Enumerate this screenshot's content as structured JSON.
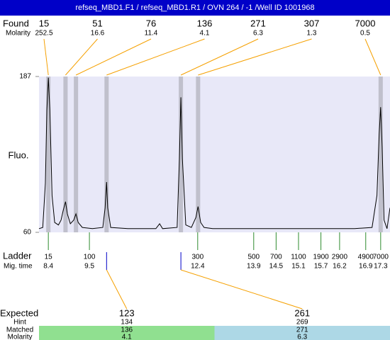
{
  "header": {
    "title": "refseq_MBD1.F1 / refseq_MBD1.R1 / OVN 264 / -1 /Well ID 1001968"
  },
  "chart_data": {
    "type": "electropherogram",
    "y_label": "Fluo.",
    "ylim": [
      60,
      187
    ],
    "yticks": [
      60,
      187
    ],
    "xlim": [
      8.15,
      17.55
    ],
    "trace": {
      "color": "#000000",
      "x": [
        8.15,
        8.25,
        8.32,
        8.36,
        8.4,
        8.44,
        8.5,
        8.57,
        8.67,
        8.74,
        8.8,
        8.86,
        8.91,
        8.99,
        9.08,
        9.14,
        9.2,
        9.31,
        9.58,
        9.86,
        9.92,
        9.96,
        9.99,
        10.07,
        10.53,
        11.28,
        11.38,
        11.46,
        11.85,
        11.91,
        11.95,
        11.99,
        12.08,
        12.23,
        12.35,
        12.41,
        12.48,
        12.57,
        12.8,
        14.7,
        16.6,
        17.07,
        17.2,
        17.26,
        17.3,
        17.34,
        17.39,
        17.47,
        17.55
      ],
      "values": [
        63,
        64,
        100,
        160,
        186,
        160,
        90,
        68,
        66,
        70,
        78,
        85,
        75,
        67,
        70,
        75,
        68,
        64,
        63,
        64,
        80,
        101,
        80,
        64,
        63,
        63,
        67,
        63,
        64,
        120,
        170,
        120,
        66,
        64,
        72,
        81,
        68,
        64,
        63,
        63,
        63,
        64,
        90,
        140,
        162,
        130,
        70,
        63,
        80
      ]
    },
    "found": {
      "label": "Found",
      "molarity_label": "Molarity",
      "sizes": [
        15,
        51,
        76,
        136,
        271,
        307,
        7000
      ],
      "molarity": [
        252.5,
        16.6,
        11.4,
        4.1,
        6.3,
        1.3,
        0.5
      ],
      "peak_times": [
        8.4,
        8.86,
        9.14,
        9.96,
        11.95,
        12.41,
        17.3
      ]
    },
    "ladder": {
      "label": "Ladder",
      "time_label": "Mig. time",
      "sizes": [
        15,
        100,
        300,
        500,
        700,
        1100,
        1900,
        2900,
        4900,
        7000
      ],
      "times": [
        8.4,
        9.5,
        12.4,
        13.9,
        14.5,
        15.1,
        15.7,
        16.2,
        16.9,
        17.3
      ]
    },
    "expected": {
      "label": "Expected",
      "hint_label": "Hint",
      "matched_label": "Matched",
      "molarity_label": "Molarity",
      "sizes": [
        123,
        261
      ],
      "hint": [
        134,
        269
      ],
      "matched": [
        136,
        271
      ],
      "molarity": [
        4.1,
        6.3
      ],
      "times": [
        9.96,
        11.95
      ],
      "colors": [
        "#90e090",
        "#add8e6"
      ]
    }
  }
}
